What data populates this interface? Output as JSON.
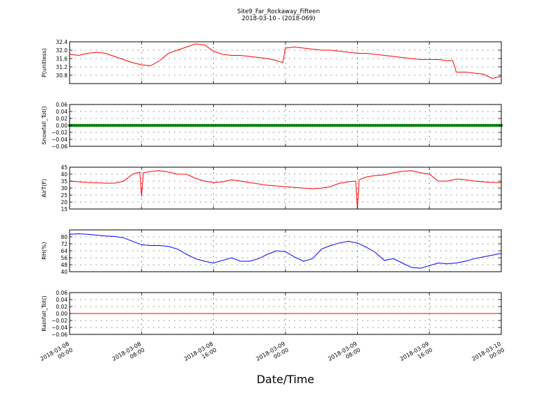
{
  "figure": {
    "title_line1": "Site9_Far_Rockaway_Fifteen",
    "title_line2": "2018-03-10 - (2018-069)",
    "xlabel": "Date/Time",
    "x_tick_labels": [
      [
        "2018-03-08",
        "00:00"
      ],
      [
        "2018-03-08",
        "08:00"
      ],
      [
        "2018-03-08",
        "16:00"
      ],
      [
        "2018-03-09",
        "00:00"
      ],
      [
        "2018-03-09",
        "08:00"
      ],
      [
        "2018-03-09",
        "16:00"
      ],
      [
        "2018-03-10",
        "00:00"
      ]
    ]
  },
  "chart_data": [
    {
      "type": "line",
      "ylabel": "P(unitless)",
      "color": "#ff0000",
      "ylim": [
        30.4,
        32.4
      ],
      "yticks": [
        30.8,
        31.2,
        31.6,
        32.0,
        32.4
      ],
      "ytick_labels": [
        "30.8",
        "31.2",
        "31.6",
        "32.0",
        "32.4"
      ],
      "grid": true,
      "x_hours": [
        0,
        1,
        2,
        3,
        4,
        5,
        6,
        7,
        8,
        9,
        10,
        11,
        12,
        13,
        14,
        15,
        16,
        17,
        18,
        19,
        20,
        21,
        22,
        23,
        23.7,
        24,
        25,
        26,
        27,
        28,
        29,
        30,
        31,
        32,
        33,
        34,
        35,
        36,
        37,
        38,
        39,
        40,
        41,
        42,
        42.6,
        43,
        44,
        45,
        46,
        47,
        48
      ],
      "values": [
        31.8,
        31.75,
        31.85,
        31.9,
        31.85,
        31.7,
        31.55,
        31.4,
        31.3,
        31.25,
        31.5,
        31.85,
        32.0,
        32.15,
        32.3,
        32.25,
        31.95,
        31.8,
        31.75,
        31.75,
        31.7,
        31.65,
        31.6,
        31.5,
        31.4,
        32.1,
        32.15,
        32.1,
        32.05,
        32.0,
        32.0,
        31.95,
        31.9,
        31.85,
        31.85,
        31.8,
        31.75,
        31.7,
        31.65,
        31.6,
        31.55,
        31.55,
        31.55,
        31.5,
        31.5,
        30.95,
        30.95,
        30.9,
        30.85,
        30.65,
        30.75
      ]
    },
    {
      "type": "scatter",
      "ylabel": "Snowfall_Tot()",
      "color": "#008000",
      "ylim": [
        -0.06,
        0.06
      ],
      "yticks": [
        -0.06,
        -0.04,
        -0.02,
        0.0,
        0.02,
        0.04,
        0.06
      ],
      "ytick_labels": [
        "−0.06",
        "−0.04",
        "−0.02",
        "0.00",
        "0.02",
        "0.04",
        "0.06"
      ],
      "grid": true,
      "x_hours": [
        0,
        48
      ],
      "values": [
        0.0,
        0.0
      ]
    },
    {
      "type": "line",
      "ylabel": "AirT(F)",
      "color": "#ff0000",
      "ylim": [
        15,
        45
      ],
      "yticks": [
        15,
        20,
        25,
        30,
        35,
        40,
        45
      ],
      "ytick_labels": [
        "15",
        "20",
        "25",
        "30",
        "35",
        "40",
        "45"
      ],
      "grid": true,
      "x_hours": [
        0,
        1,
        2,
        3,
        4,
        5,
        6,
        7,
        7.8,
        8,
        8.2,
        9,
        10,
        11,
        12,
        13,
        14,
        15,
        16,
        17,
        18,
        19,
        20,
        21,
        22,
        23,
        24,
        25,
        26,
        27,
        28,
        29,
        30,
        31,
        31.8,
        32,
        32.2,
        33,
        34,
        35,
        36,
        37,
        38,
        39,
        40,
        41,
        42,
        43,
        44,
        45,
        46,
        47,
        48
      ],
      "values": [
        35,
        34.5,
        34,
        33.8,
        33.5,
        33.5,
        35,
        40,
        41.5,
        24,
        41,
        42,
        42.5,
        41.5,
        40,
        40,
        37,
        35,
        34,
        34.5,
        36,
        35,
        34,
        33,
        32,
        31.5,
        31,
        30.5,
        30,
        29.5,
        30,
        31,
        33.5,
        34.5,
        35,
        15,
        36,
        38,
        39,
        39.5,
        41,
        42,
        42.5,
        41,
        40,
        35,
        35,
        36.5,
        36,
        35,
        34.5,
        34,
        34
      ]
    },
    {
      "type": "line",
      "ylabel": "RH(%)",
      "color": "#0000ff",
      "ylim": [
        40,
        88
      ],
      "yticks": [
        40,
        48,
        56,
        64,
        72,
        80
      ],
      "ytick_labels": [
        "40",
        "48",
        "56",
        "64",
        "72",
        "80"
      ],
      "grid": true,
      "x_hours": [
        0,
        1,
        2,
        3,
        4,
        5,
        6,
        7,
        8,
        9,
        10,
        11,
        12,
        13,
        14,
        15,
        16,
        17,
        18,
        19,
        20,
        21,
        22,
        23,
        24,
        25,
        26,
        27,
        28,
        29,
        30,
        31,
        32,
        33,
        34,
        35,
        36,
        37,
        38,
        39,
        40,
        41,
        42,
        43,
        44,
        45,
        46,
        47,
        48
      ],
      "values": [
        83,
        83.5,
        83,
        82,
        81,
        80.5,
        79,
        75,
        71,
        70,
        70,
        69,
        66,
        60,
        55,
        52,
        50,
        53,
        56,
        52,
        52,
        55,
        60,
        64,
        63,
        57,
        52,
        55,
        66,
        70,
        73,
        75,
        73,
        68,
        62,
        53,
        55,
        50,
        45,
        44,
        47,
        50,
        49,
        50,
        52,
        55,
        57,
        59,
        61
      ]
    },
    {
      "type": "line",
      "ylabel": "Rainfall_Tot()",
      "color": "#ff0000",
      "ylim": [
        -0.06,
        0.06
      ],
      "yticks": [
        -0.06,
        -0.04,
        -0.02,
        0.0,
        0.02,
        0.04,
        0.06
      ],
      "ytick_labels": [
        "−0.06",
        "−0.04",
        "−0.02",
        "0.00",
        "0.02",
        "0.04",
        "0.06"
      ],
      "grid": true,
      "x_hours": [
        0,
        48
      ],
      "values": [
        0.0,
        0.0
      ]
    }
  ]
}
